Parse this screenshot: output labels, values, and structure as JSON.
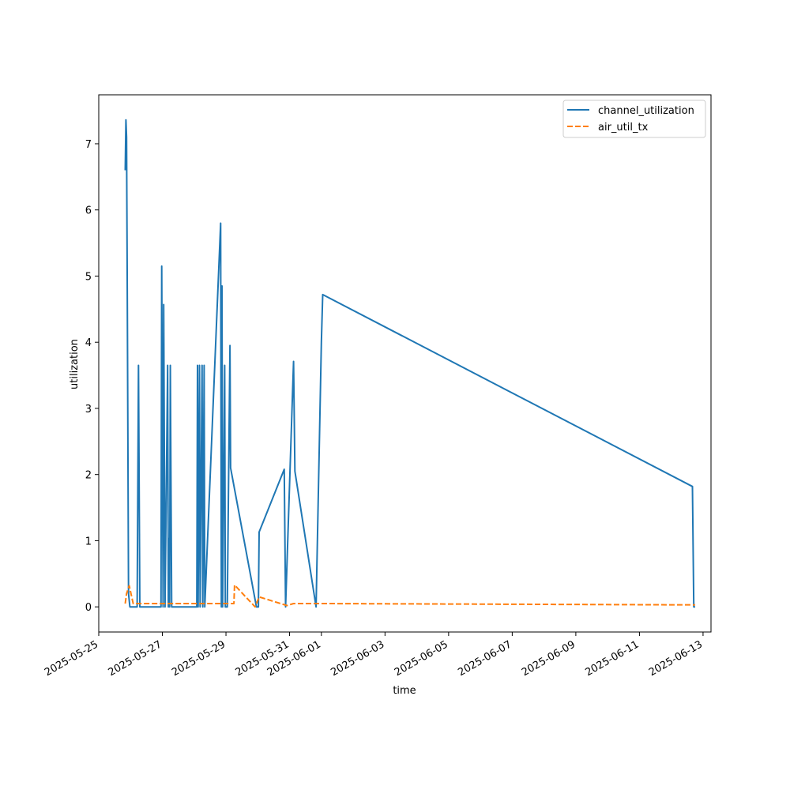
{
  "chart_data": {
    "type": "line",
    "title": "",
    "xlabel": "time",
    "ylabel": "utilization",
    "xlim": [
      "2025-05-25T00:00",
      "2025-06-13T06:00"
    ],
    "ylim": [
      -0.38,
      7.74
    ],
    "x_ticks": [
      "2025-05-25",
      "2025-05-27",
      "2025-05-29",
      "2025-05-31",
      "2025-06-01",
      "2025-06-03",
      "2025-06-05",
      "2025-06-07",
      "2025-06-09",
      "2025-06-11",
      "2025-06-13"
    ],
    "y_ticks": [
      0,
      1,
      2,
      3,
      4,
      5,
      6,
      7
    ],
    "grid": false,
    "legend_position": "top-right",
    "series": [
      {
        "name": "channel_utilization",
        "color": "#1f77b4",
        "line_style": "solid",
        "points": [
          [
            "2025-05-25T20:00",
            6.6
          ],
          [
            "2025-05-25T20:30",
            7.36
          ],
          [
            "2025-05-25T21:00",
            7.1
          ],
          [
            "2025-05-25T21:30",
            4.8
          ],
          [
            "2025-05-25T22:30",
            0.2
          ],
          [
            "2025-05-25T23:30",
            0.0
          ],
          [
            "2025-05-26T05:00",
            0.0
          ],
          [
            "2025-05-26T06:00",
            3.65
          ],
          [
            "2025-05-26T07:00",
            0.0
          ],
          [
            "2025-05-26T23:00",
            0.0
          ],
          [
            "2025-05-26T23:30",
            5.15
          ],
          [
            "2025-05-27T00:30",
            0.0
          ],
          [
            "2025-05-27T01:00",
            4.57
          ],
          [
            "2025-05-27T02:00",
            0.0
          ],
          [
            "2025-05-27T04:00",
            3.65
          ],
          [
            "2025-05-27T04:30",
            0.0
          ],
          [
            "2025-05-27T05:00",
            1.03
          ],
          [
            "2025-05-27T05:30",
            0.0
          ],
          [
            "2025-05-27T06:00",
            3.65
          ],
          [
            "2025-05-27T07:00",
            0.0
          ],
          [
            "2025-05-28T02:00",
            0.0
          ],
          [
            "2025-05-28T02:30",
            3.65
          ],
          [
            "2025-05-28T03:00",
            0.0
          ],
          [
            "2025-05-28T04:00",
            3.65
          ],
          [
            "2025-05-28T04:30",
            0.0
          ],
          [
            "2025-05-28T06:00",
            3.65
          ],
          [
            "2025-05-28T06:30",
            0.0
          ],
          [
            "2025-05-28T07:30",
            3.65
          ],
          [
            "2025-05-28T08:00",
            0.0
          ],
          [
            "2025-05-28T20:00",
            5.8
          ],
          [
            "2025-05-28T20:30",
            0.0
          ],
          [
            "2025-05-28T21:00",
            4.85
          ],
          [
            "2025-05-28T21:30",
            0.0
          ],
          [
            "2025-05-28T23:00",
            3.65
          ],
          [
            "2025-05-28T23:30",
            0.0
          ],
          [
            "2025-05-29T01:00",
            0.0
          ],
          [
            "2025-05-29T03:00",
            3.95
          ],
          [
            "2025-05-29T03:30",
            2.1
          ],
          [
            "2025-05-29T23:00",
            0.0
          ],
          [
            "2025-05-30T00:30",
            0.0
          ],
          [
            "2025-05-30T01:00",
            1.13
          ],
          [
            "2025-05-30T20:00",
            2.08
          ],
          [
            "2025-05-30T21:00",
            0.0
          ],
          [
            "2025-05-31T03:00",
            3.71
          ],
          [
            "2025-05-31T04:00",
            2.05
          ],
          [
            "2025-05-31T20:00",
            0.0
          ],
          [
            "2025-06-01T00:00",
            4.0
          ],
          [
            "2025-06-01T01:00",
            4.72
          ],
          [
            "2025-06-12T16:00",
            1.82
          ],
          [
            "2025-06-12T17:00",
            0.0
          ],
          [
            "2025-06-12T18:00",
            0.0
          ]
        ]
      },
      {
        "name": "air_util_tx",
        "color": "#ff7f0e",
        "line_style": "dashed",
        "points": [
          [
            "2025-05-25T20:00",
            0.05
          ],
          [
            "2025-05-25T21:00",
            0.2
          ],
          [
            "2025-05-25T23:00",
            0.32
          ],
          [
            "2025-05-26T02:00",
            0.05
          ],
          [
            "2025-05-29T06:00",
            0.05
          ],
          [
            "2025-05-29T06:30",
            0.33
          ],
          [
            "2025-05-29T22:00",
            0.0
          ],
          [
            "2025-05-30T01:00",
            0.15
          ],
          [
            "2025-05-30T22:00",
            0.02
          ],
          [
            "2025-05-31T03:00",
            0.05
          ],
          [
            "2025-06-01T00:00",
            0.05
          ],
          [
            "2025-06-12T18:00",
            0.03
          ]
        ]
      }
    ]
  }
}
